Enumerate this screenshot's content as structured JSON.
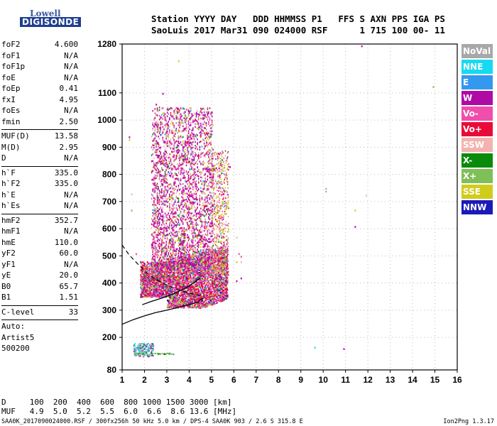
{
  "logo": {
    "line1": "Lowell",
    "line2": "DIGISONDE"
  },
  "header": {
    "line1": "Station YYYY DAY   DDD HHMMSS P1   FFS S AXN PPS IGA PS",
    "line2": "SaoLuis 2017 Mar31 090 024000 RSF      1 715 100 00- 11"
  },
  "params": [
    {
      "label": "foF2",
      "value": "4.600"
    },
    {
      "label": "foF1",
      "value": "N/A"
    },
    {
      "label": "foF1p",
      "value": "N/A"
    },
    {
      "label": "foE",
      "value": "N/A"
    },
    {
      "label": "foEp",
      "value": "0.41"
    },
    {
      "label": "fxI",
      "value": "4.95"
    },
    {
      "label": "foEs",
      "value": "N/A"
    },
    {
      "label": "fmin",
      "value": "2.50"
    },
    {
      "sep": true
    },
    {
      "label": "MUF(D)",
      "value": "13.58"
    },
    {
      "label": "M(D)",
      "value": "2.95"
    },
    {
      "label": "D",
      "value": "N/A"
    },
    {
      "sep": true
    },
    {
      "label": "h`F",
      "value": "335.0"
    },
    {
      "label": "h`F2",
      "value": "335.0"
    },
    {
      "label": "h`E",
      "value": "N/A"
    },
    {
      "label": "h`Es",
      "value": "N/A"
    },
    {
      "sep": true
    },
    {
      "label": "hmF2",
      "value": "352.7"
    },
    {
      "label": "hmF1",
      "value": "N/A"
    },
    {
      "label": "hmE",
      "value": "110.0"
    },
    {
      "label": "yF2",
      "value": "60.0"
    },
    {
      "label": "yF1",
      "value": "N/A"
    },
    {
      "label": "yE",
      "value": "20.0"
    },
    {
      "label": "B0",
      "value": "65.7"
    },
    {
      "label": "B1",
      "value": "1.51"
    },
    {
      "sep": true
    },
    {
      "label": "C-level",
      "value": "33"
    },
    {
      "sep": true
    },
    {
      "text": "Auto:"
    },
    {
      "text": "Artist5"
    },
    {
      "text": "500200"
    }
  ],
  "legend": [
    {
      "label": "NoVal",
      "color": "#a8a8a8"
    },
    {
      "label": "NNE",
      "color": "#17d9f0"
    },
    {
      "label": "E",
      "color": "#3399ee"
    },
    {
      "label": "W",
      "color": "#b00aa6"
    },
    {
      "label": "Vo-",
      "color": "#f04dac"
    },
    {
      "label": "Vo+",
      "color": "#ea0a3a"
    },
    {
      "label": "SSW",
      "color": "#f3b3b0"
    },
    {
      "label": "X-",
      "color": "#0a8a0a"
    },
    {
      "label": "X+",
      "color": "#7fbf57"
    },
    {
      "label": "SSE",
      "color": "#d1cc1c"
    },
    {
      "label": "NNW",
      "color": "#1a1ab8"
    }
  ],
  "chart_data": {
    "type": "scatter",
    "x_ticks": [
      "1",
      "2",
      "3",
      "4",
      "5",
      "6",
      "7",
      "8",
      "9",
      "10",
      "11",
      "12",
      "13",
      "14",
      "15",
      "16"
    ],
    "y_ticks": [
      "80",
      "200",
      "300",
      "400",
      "500",
      "600",
      "700",
      "800",
      "900",
      "1000",
      "1100",
      "1280"
    ],
    "xlim": [
      1,
      16
    ],
    "ylim": [
      80,
      1280
    ]
  },
  "footer": {
    "line1": "D     100  200  400  600  800 1000 1500 3000 [km]",
    "line2": "MUF   4.9  5.0  5.2  5.5  6.0  6.6  8.6 13.6 [MHz]",
    "line3": "SAA0K_2017090024000.RSF / 300fx256h 50 kHz 5.0 km / DPS-4 SAA0K 903 / 2.6 S 315.8 E",
    "version": "Ion2Png 1.3.17"
  }
}
